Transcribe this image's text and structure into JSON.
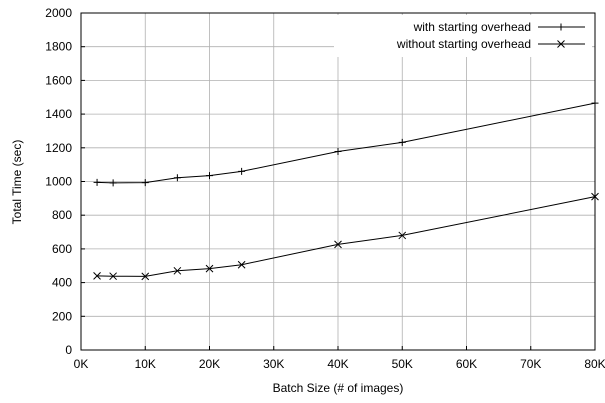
{
  "chart_data": {
    "type": "line",
    "xlabel": "Batch Size (# of images)",
    "ylabel": "Total Time (sec)",
    "xlim": [
      0,
      80000
    ],
    "ylim": [
      0,
      2000
    ],
    "x_ticks": [
      0,
      10000,
      20000,
      30000,
      40000,
      50000,
      60000,
      70000,
      80000
    ],
    "x_tick_labels": [
      "0K",
      "10K",
      "20K",
      "30K",
      "40K",
      "50K",
      "60K",
      "70K",
      "80K"
    ],
    "y_ticks": [
      0,
      200,
      400,
      600,
      800,
      1000,
      1200,
      1400,
      1600,
      1800,
      2000
    ],
    "y_tick_labels": [
      "0",
      "200",
      "400",
      "600",
      "800",
      "1000",
      "1200",
      "1400",
      "1600",
      "1800",
      "2000"
    ],
    "grid": true,
    "legend_position": "top-right",
    "series": [
      {
        "name": "with starting overhead",
        "marker": "plus",
        "x": [
          2500,
          5000,
          10000,
          15000,
          20000,
          25000,
          40000,
          50000,
          80000
        ],
        "values": [
          995,
          992,
          993,
          1022,
          1035,
          1060,
          1178,
          1232,
          1465
        ]
      },
      {
        "name": "without starting overhead",
        "marker": "cross",
        "x": [
          2500,
          5000,
          10000,
          15000,
          20000,
          25000,
          40000,
          50000,
          80000
        ],
        "values": [
          440,
          438,
          437,
          470,
          483,
          506,
          627,
          680,
          910
        ]
      }
    ]
  }
}
